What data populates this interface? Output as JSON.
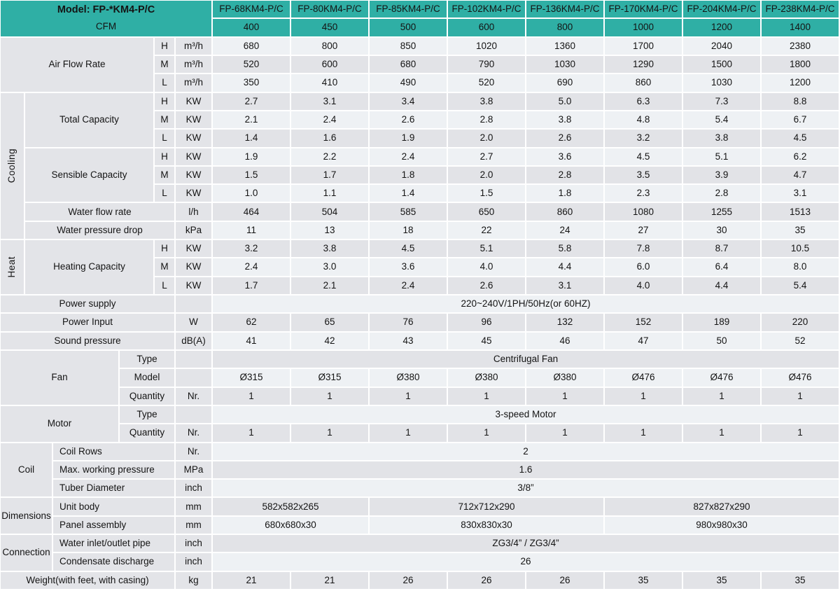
{
  "colors": {
    "header_teal": "#2FAFA5",
    "label_gray": "#E3E4E8",
    "row_light": "#EEF1F4",
    "row_gray": "#E2E3E7",
    "gap_white": "#FFFFFF",
    "text": "#141414"
  },
  "header": {
    "model_label": "Model: FP-*KM4-P/C",
    "cfm_label": "CFM",
    "models": [
      "FP-68KM4-P/C",
      "FP-80KM4-P/C",
      "FP-85KM4-P/C",
      "FP-102KM4-P/C",
      "FP-136KM4-P/C",
      "FP-170KM4-P/C",
      "FP-204KM4-P/C",
      "FP-238KM4-P/C"
    ],
    "cfm": [
      "400",
      "450",
      "500",
      "600",
      "800",
      "1000",
      "1200",
      "1400"
    ]
  },
  "body": [
    {
      "r": 3,
      "name": "airflow-h",
      "left": [
        [
          1,
          4,
          3,
          "label",
          "Air Flow Rate"
        ],
        [
          5,
          5,
          1,
          "speed",
          "H"
        ],
        [
          6,
          6,
          1,
          "unit",
          "m³/h"
        ]
      ],
      "values": [
        "680",
        "800",
        "850",
        "1020",
        "1360",
        "1700",
        "2040",
        "2380"
      ]
    },
    {
      "r": 4,
      "name": "airflow-m",
      "left": [
        [
          5,
          5,
          1,
          "speed",
          "M"
        ],
        [
          6,
          6,
          1,
          "unit",
          "m³/h"
        ]
      ],
      "values": [
        "520",
        "600",
        "680",
        "790",
        "1030",
        "1290",
        "1500",
        "1800"
      ]
    },
    {
      "r": 5,
      "name": "airflow-l",
      "left": [
        [
          5,
          5,
          1,
          "speed",
          "L"
        ],
        [
          6,
          6,
          1,
          "unit",
          "m³/h"
        ]
      ],
      "values": [
        "350",
        "410",
        "490",
        "520",
        "690",
        "860",
        "1030",
        "1200"
      ]
    },
    {
      "r": 6,
      "name": "cooling-total-h",
      "left": [
        [
          1,
          1,
          8,
          "group",
          "Cooling"
        ],
        [
          2,
          4,
          3,
          "label",
          "Total Capacity"
        ],
        [
          5,
          5,
          1,
          "speed",
          "H"
        ],
        [
          6,
          6,
          1,
          "unit",
          "KW"
        ]
      ],
      "values": [
        "2.7",
        "3.1",
        "3.4",
        "3.8",
        "5.0",
        "6.3",
        "7.3",
        "8.8"
      ]
    },
    {
      "r": 7,
      "name": "cooling-total-m",
      "left": [
        [
          5,
          5,
          1,
          "speed",
          "M"
        ],
        [
          6,
          6,
          1,
          "unit",
          "KW"
        ]
      ],
      "values": [
        "2.1",
        "2.4",
        "2.6",
        "2.8",
        "3.8",
        "4.8",
        "5.4",
        "6.7"
      ]
    },
    {
      "r": 8,
      "name": "cooling-total-l",
      "left": [
        [
          5,
          5,
          1,
          "speed",
          "L"
        ],
        [
          6,
          6,
          1,
          "unit",
          "KW"
        ]
      ],
      "values": [
        "1.4",
        "1.6",
        "1.9",
        "2.0",
        "2.6",
        "3.2",
        "3.8",
        "4.5"
      ]
    },
    {
      "r": 9,
      "name": "cooling-sensible-h",
      "left": [
        [
          2,
          4,
          3,
          "label",
          "Sensible Capacity"
        ],
        [
          5,
          5,
          1,
          "speed",
          "H"
        ],
        [
          6,
          6,
          1,
          "unit",
          "KW"
        ]
      ],
      "values": [
        "1.9",
        "2.2",
        "2.4",
        "2.7",
        "3.6",
        "4.5",
        "5.1",
        "6.2"
      ]
    },
    {
      "r": 10,
      "name": "cooling-sensible-m",
      "left": [
        [
          5,
          5,
          1,
          "speed",
          "M"
        ],
        [
          6,
          6,
          1,
          "unit",
          "KW"
        ]
      ],
      "values": [
        "1.5",
        "1.7",
        "1.8",
        "2.0",
        "2.8",
        "3.5",
        "3.9",
        "4.7"
      ]
    },
    {
      "r": 11,
      "name": "cooling-sensible-l",
      "left": [
        [
          5,
          5,
          1,
          "speed",
          "L"
        ],
        [
          6,
          6,
          1,
          "unit",
          "KW"
        ]
      ],
      "values": [
        "1.0",
        "1.1",
        "1.4",
        "1.5",
        "1.8",
        "2.3",
        "2.8",
        "3.1"
      ]
    },
    {
      "r": 12,
      "name": "water-flow-rate",
      "left": [
        [
          2,
          5,
          1,
          "label",
          "Water flow rate"
        ],
        [
          6,
          6,
          1,
          "unit",
          "l/h"
        ]
      ],
      "values": [
        "464",
        "504",
        "585",
        "650",
        "860",
        "1080",
        "1255",
        "1513"
      ]
    },
    {
      "r": 13,
      "name": "water-pressure-drop",
      "left": [
        [
          2,
          5,
          1,
          "label",
          "Water pressure drop"
        ],
        [
          6,
          6,
          1,
          "unit",
          "kPa"
        ]
      ],
      "values": [
        "11",
        "13",
        "18",
        "22",
        "24",
        "27",
        "30",
        "35"
      ]
    },
    {
      "r": 14,
      "name": "heating-h",
      "left": [
        [
          1,
          1,
          3,
          "group",
          "Heat"
        ],
        [
          2,
          4,
          3,
          "label",
          "Heating Capacity"
        ],
        [
          5,
          5,
          1,
          "speed",
          "H"
        ],
        [
          6,
          6,
          1,
          "unit",
          "KW"
        ]
      ],
      "values": [
        "3.2",
        "3.8",
        "4.5",
        "5.1",
        "5.8",
        "7.8",
        "8.7",
        "10.5"
      ]
    },
    {
      "r": 15,
      "name": "heating-m",
      "left": [
        [
          5,
          5,
          1,
          "speed",
          "M"
        ],
        [
          6,
          6,
          1,
          "unit",
          "KW"
        ]
      ],
      "values": [
        "2.4",
        "3.0",
        "3.6",
        "4.0",
        "4.4",
        "6.0",
        "6.4",
        "8.0"
      ]
    },
    {
      "r": 16,
      "name": "heating-l",
      "left": [
        [
          5,
          5,
          1,
          "speed",
          "L"
        ],
        [
          6,
          6,
          1,
          "unit",
          "KW"
        ]
      ],
      "values": [
        "1.7",
        "2.1",
        "2.4",
        "2.6",
        "3.1",
        "4.0",
        "4.4",
        "5.4"
      ]
    },
    {
      "r": 17,
      "name": "power-supply",
      "left": [
        [
          1,
          5,
          1,
          "label",
          "Power supply"
        ],
        [
          6,
          6,
          1,
          "unit",
          ""
        ]
      ],
      "values": [
        [
          8,
          "220~240V/1PH/50Hz(or 60HZ)"
        ]
      ]
    },
    {
      "r": 18,
      "name": "power-input",
      "left": [
        [
          1,
          5,
          1,
          "label",
          "Power Input"
        ],
        [
          6,
          6,
          1,
          "unit",
          "W"
        ]
      ],
      "values": [
        "62",
        "65",
        "76",
        "96",
        "132",
        "152",
        "189",
        "220"
      ]
    },
    {
      "r": 19,
      "name": "sound-pressure",
      "left": [
        [
          1,
          5,
          1,
          "label",
          "Sound pressure"
        ],
        [
          6,
          6,
          1,
          "unit",
          "dB(A)"
        ]
      ],
      "values": [
        "41",
        "42",
        "43",
        "45",
        "46",
        "47",
        "50",
        "52"
      ]
    },
    {
      "r": 20,
      "name": "fan-type",
      "left": [
        [
          1,
          3,
          3,
          "group-h",
          "Fan"
        ],
        [
          4,
          5,
          1,
          "sublabel",
          "Type"
        ],
        [
          6,
          6,
          1,
          "unit",
          ""
        ]
      ],
      "values": [
        [
          8,
          "Centrifugal Fan"
        ]
      ]
    },
    {
      "r": 21,
      "name": "fan-model",
      "left": [
        [
          4,
          5,
          1,
          "sublabel",
          "Model"
        ],
        [
          6,
          6,
          1,
          "unit",
          ""
        ]
      ],
      "values": [
        "Ø315",
        "Ø315",
        "Ø380",
        "Ø380",
        "Ø380",
        "Ø476",
        "Ø476",
        "Ø476"
      ]
    },
    {
      "r": 22,
      "name": "fan-quantity",
      "left": [
        [
          4,
          5,
          1,
          "sublabel",
          "Quantity"
        ],
        [
          6,
          6,
          1,
          "unit",
          "Nr."
        ]
      ],
      "values": [
        "1",
        "1",
        "1",
        "1",
        "1",
        "1",
        "1",
        "1"
      ]
    },
    {
      "r": 23,
      "name": "motor-type",
      "left": [
        [
          1,
          3,
          2,
          "group-h",
          "Motor"
        ],
        [
          4,
          5,
          1,
          "sublabel",
          "Type"
        ],
        [
          6,
          6,
          1,
          "unit",
          ""
        ]
      ],
      "values": [
        [
          8,
          "3-speed Motor"
        ]
      ]
    },
    {
      "r": 24,
      "name": "motor-quantity",
      "left": [
        [
          4,
          5,
          1,
          "sublabel",
          "Quantity"
        ],
        [
          6,
          6,
          1,
          "unit",
          "Nr."
        ]
      ],
      "values": [
        "1",
        "1",
        "1",
        "1",
        "1",
        "1",
        "1",
        "1"
      ]
    },
    {
      "r": 25,
      "name": "coil-rows",
      "left": [
        [
          1,
          2,
          3,
          "group-h",
          "Coil"
        ],
        [
          3,
          5,
          1,
          "label-left",
          "Coil Rows"
        ],
        [
          6,
          6,
          1,
          "unit",
          "Nr."
        ]
      ],
      "values": [
        [
          8,
          "2"
        ]
      ]
    },
    {
      "r": 26,
      "name": "coil-max-working-pressure",
      "left": [
        [
          3,
          5,
          1,
          "label-left",
          "Max. working pressure"
        ],
        [
          6,
          6,
          1,
          "unit",
          "MPa"
        ]
      ],
      "values": [
        [
          8,
          "1.6"
        ]
      ]
    },
    {
      "r": 27,
      "name": "coil-tuber-diameter",
      "left": [
        [
          3,
          5,
          1,
          "label-left",
          "Tuber Diameter"
        ],
        [
          6,
          6,
          1,
          "unit",
          "inch"
        ]
      ],
      "values": [
        [
          8,
          "3/8”"
        ]
      ]
    },
    {
      "r": 28,
      "name": "dimensions-unit-body",
      "left": [
        [
          1,
          2,
          2,
          "group-h",
          "Dimensions"
        ],
        [
          3,
          5,
          1,
          "label-left",
          "Unit body"
        ],
        [
          6,
          6,
          1,
          "unit",
          "mm"
        ]
      ],
      "values": [
        [
          2,
          "582x582x265"
        ],
        [
          3,
          "712x712x290"
        ],
        [
          3,
          "827x827x290"
        ]
      ]
    },
    {
      "r": 29,
      "name": "dimensions-panel-assembly",
      "left": [
        [
          3,
          5,
          1,
          "label-left",
          "Panel assembly"
        ],
        [
          6,
          6,
          1,
          "unit",
          "mm"
        ]
      ],
      "values": [
        [
          2,
          "680x680x30"
        ],
        [
          3,
          "830x830x30"
        ],
        [
          3,
          "980x980x30"
        ]
      ]
    },
    {
      "r": 30,
      "name": "connection-water-inlet-outlet-pipe",
      "left": [
        [
          1,
          2,
          2,
          "group-h",
          "Connection"
        ],
        [
          3,
          5,
          1,
          "label-left",
          "Water inlet/outlet pipe"
        ],
        [
          6,
          6,
          1,
          "unit",
          "inch"
        ]
      ],
      "values": [
        [
          8,
          "ZG3/4” / ZG3/4”"
        ]
      ]
    },
    {
      "r": 31,
      "name": "connection-condensate-discharge",
      "left": [
        [
          3,
          5,
          1,
          "label-left",
          "Condensate discharge"
        ],
        [
          6,
          6,
          1,
          "unit",
          "inch"
        ]
      ],
      "values": [
        [
          8,
          "26"
        ]
      ]
    },
    {
      "r": 32,
      "name": "weight",
      "left": [
        [
          1,
          5,
          1,
          "label",
          "Weight(with feet, with casing)"
        ],
        [
          6,
          6,
          1,
          "unit",
          "kg"
        ]
      ],
      "values": [
        "21",
        "21",
        "26",
        "26",
        "26",
        "35",
        "35",
        "35"
      ]
    }
  ]
}
